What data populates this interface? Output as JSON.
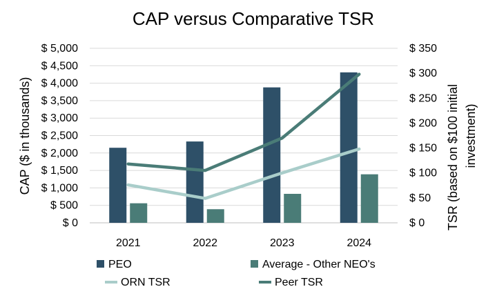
{
  "chart_data": {
    "type": "bar",
    "title": "CAP versus Comparative TSR",
    "categories": [
      "2021",
      "2022",
      "2023",
      "2024"
    ],
    "ylabel": "CAP ($ in thousands)",
    "y2label_line1": "TSR (based on $100 initial",
    "y2label_line2": "investment)",
    "ylim": [
      0,
      5000
    ],
    "y2lim": [
      0,
      350
    ],
    "yticks": [
      "$ 0",
      "$ 500",
      "$ 1,000",
      "$ 1,500",
      "$ 2,000",
      "$ 2,500",
      "$ 3,000",
      "$ 3,500",
      "$ 4,000",
      "$ 4,500",
      "$ 5,000"
    ],
    "y2ticks": [
      "$ 0",
      "$ 50",
      "$ 100",
      "$ 150",
      "$ 200",
      "$ 250",
      "$ 300",
      "$ 350"
    ],
    "grid": true,
    "legend_position": "bottom",
    "bar_series": [
      {
        "name": "PEO",
        "values": [
          2150,
          2330,
          3880,
          4310
        ],
        "color": "#2e5068"
      },
      {
        "name": "Average - Other NEO's",
        "values": [
          560,
          390,
          830,
          1390
        ],
        "color": "#4a7c77"
      }
    ],
    "line_series": [
      {
        "name": "ORN TSR",
        "values": [
          76,
          49,
          100,
          148
        ],
        "color": "#a9cdca",
        "axis": "right"
      },
      {
        "name": "Peer TSR",
        "values": [
          118,
          105,
          170,
          298
        ],
        "color": "#4a7c77",
        "axis": "right"
      }
    ]
  }
}
